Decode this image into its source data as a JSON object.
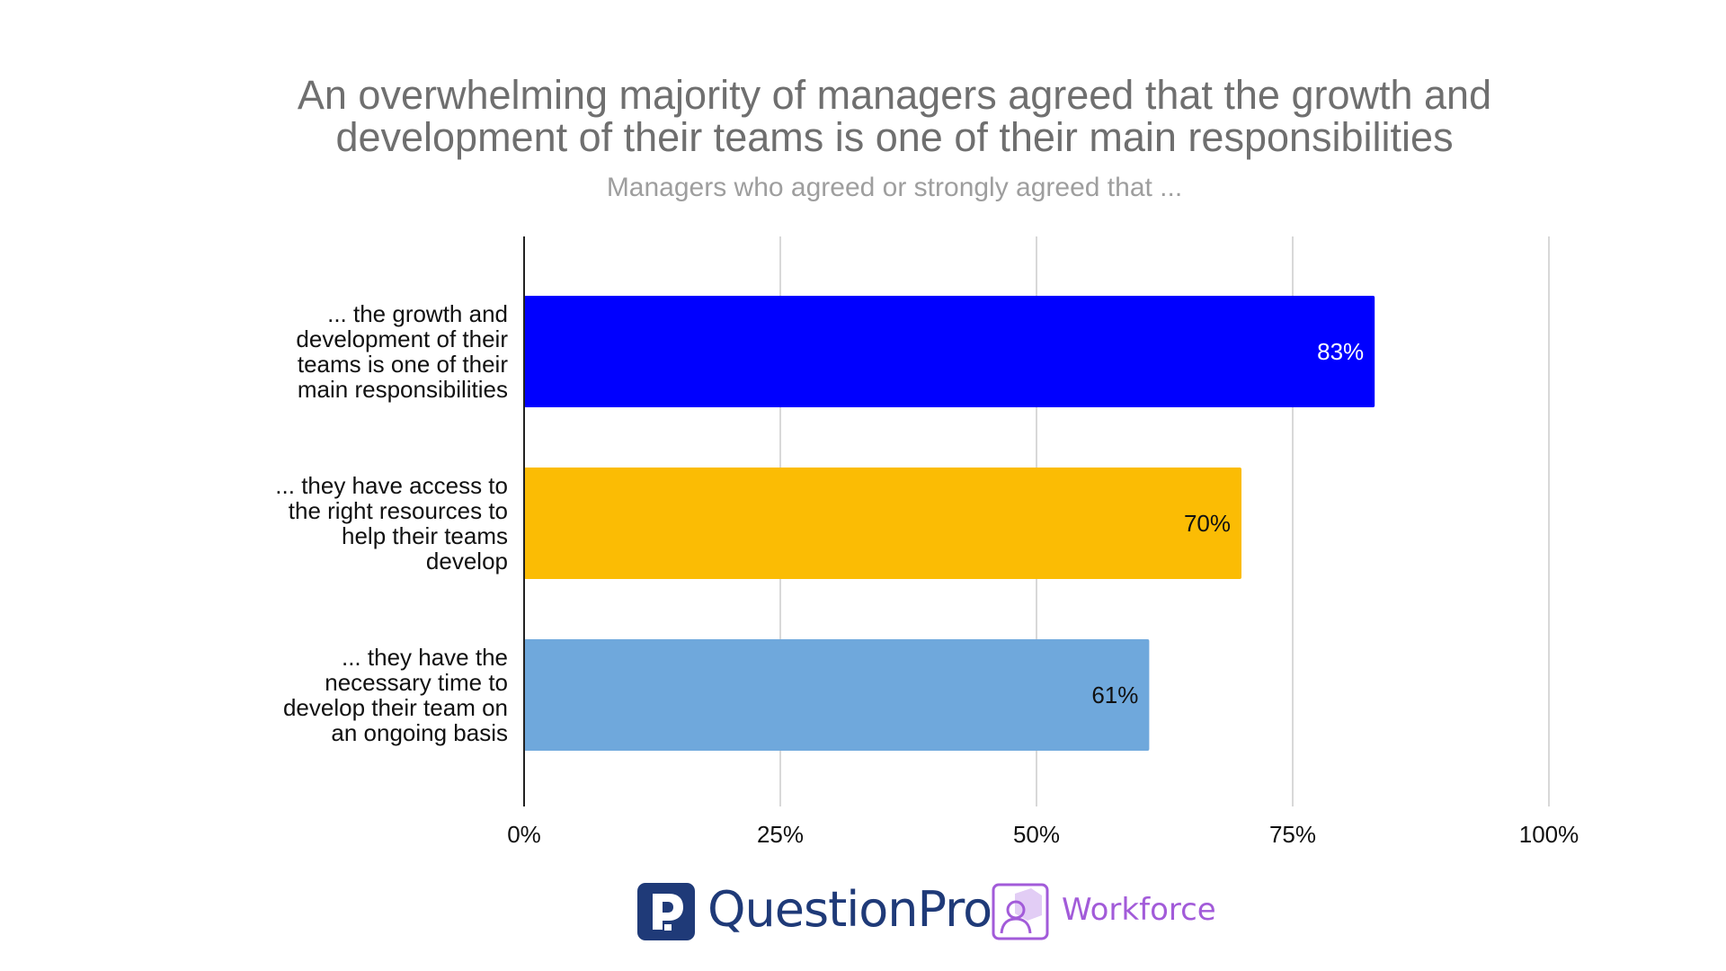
{
  "chart_data": {
    "type": "bar",
    "orientation": "horizontal",
    "title_lines": [
      "An overwhelming majority of managers agreed that the growth and",
      "development of their teams is one of their main responsibilities"
    ],
    "subtitle": "Managers who agreed or strongly agreed that ...",
    "categories": [
      [
        "... the growth and",
        "development of their",
        "teams is one of their",
        "main responsibilities"
      ],
      [
        "... they have access to",
        "the right resources to",
        "help their teams",
        "develop"
      ],
      [
        "... they have the",
        "necessary time to",
        "develop their team on",
        "an ongoing basis"
      ]
    ],
    "values": [
      83,
      70,
      61
    ],
    "data_labels": [
      "83%",
      "70%",
      "61%"
    ],
    "bar_colors": [
      "#0000ff",
      "#fbbc04",
      "#6fa8dc"
    ],
    "data_label_colors": [
      "#ffffff",
      "#111111",
      "#111111"
    ],
    "xlim": [
      0,
      100
    ],
    "ticks": [
      0,
      25,
      50,
      75,
      100
    ],
    "tick_labels": [
      "0%",
      "25%",
      "50%",
      "75%",
      "100%"
    ],
    "grid": true,
    "legend": "none"
  },
  "logos": {
    "brand": "QuestionPro",
    "product": "Workforce",
    "brand_color": "#1f3a78",
    "product_color": "#a25bd9"
  }
}
